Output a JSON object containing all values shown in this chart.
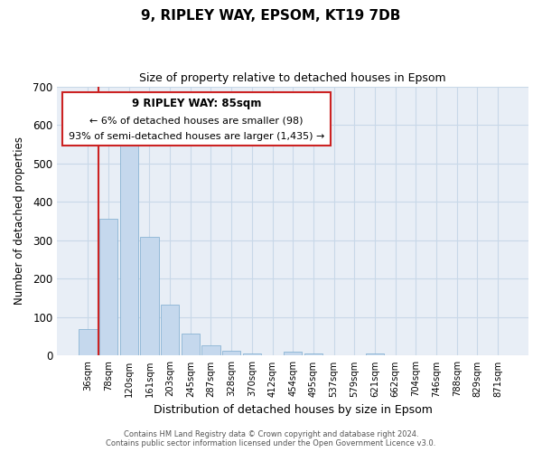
{
  "title": "9, RIPLEY WAY, EPSOM, KT19 7DB",
  "subtitle": "Size of property relative to detached houses in Epsom",
  "xlabel": "Distribution of detached houses by size in Epsom",
  "ylabel": "Number of detached properties",
  "bar_labels": [
    "36sqm",
    "78sqm",
    "120sqm",
    "161sqm",
    "203sqm",
    "245sqm",
    "287sqm",
    "328sqm",
    "370sqm",
    "412sqm",
    "454sqm",
    "495sqm",
    "537sqm",
    "579sqm",
    "621sqm",
    "662sqm",
    "704sqm",
    "746sqm",
    "788sqm",
    "829sqm",
    "871sqm"
  ],
  "bar_values": [
    70,
    355,
    565,
    310,
    133,
    57,
    27,
    13,
    5,
    0,
    10,
    5,
    0,
    0,
    5,
    0,
    0,
    0,
    0,
    0,
    0
  ],
  "bar_color": "#c5d8ed",
  "bar_edge_color": "#8ab4d4",
  "grid_color": "#c8d8e8",
  "plot_bg_color": "#e8eef6",
  "fig_bg_color": "#ffffff",
  "annotation_box_color": "#ffffff",
  "annotation_border_color": "#cc2222",
  "property_line_color": "#cc2222",
  "annotation_title": "9 RIPLEY WAY: 85sqm",
  "annotation_line1": "← 6% of detached houses are smaller (98)",
  "annotation_line2": "93% of semi-detached houses are larger (1,435) →",
  "ylim": [
    0,
    700
  ],
  "yticks": [
    0,
    100,
    200,
    300,
    400,
    500,
    600,
    700
  ],
  "footnote1": "Contains HM Land Registry data © Crown copyright and database right 2024.",
  "footnote2": "Contains public sector information licensed under the Open Government Licence v3.0."
}
